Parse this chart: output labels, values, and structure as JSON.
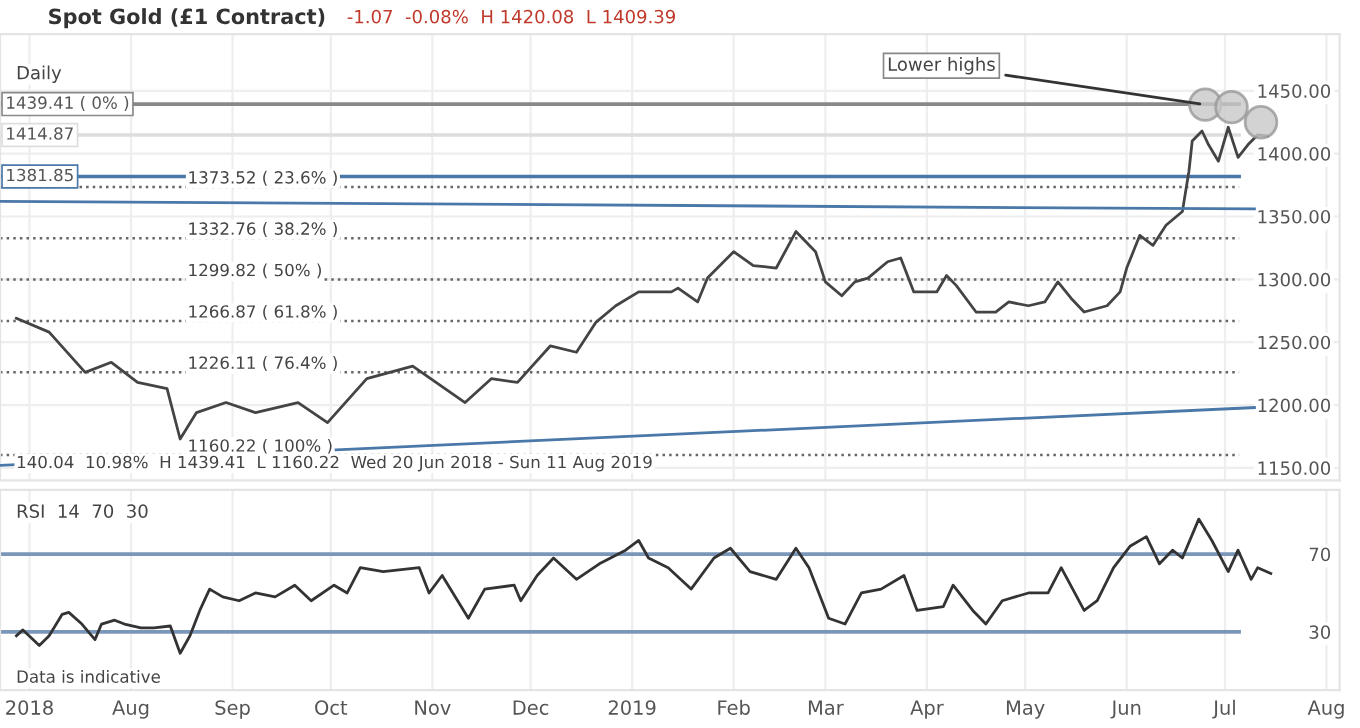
{
  "chart_data": [
    {
      "type": "line",
      "title": "Spot Gold (£1 Contract)",
      "subtitle": "-1.07  -0.08%  H 1420.08  L 1409.39",
      "annotations": [
        "Daily",
        "140.04  10.98%  H 1439.41  L 1160.22  Wed 20 Jun 2018 - Sun 11 Aug 2019",
        {
          "text": "Lower highs",
          "x": "2019-06-25",
          "y": 1439
        }
      ],
      "xlim": [
        "2018-06-22",
        "2019-08-05"
      ],
      "ylim": [
        1140,
        1495
      ],
      "yticks": [
        {
          "value": 1150,
          "label": "1150.00"
        },
        {
          "value": 1200,
          "label": "1200.00"
        },
        {
          "value": 1250,
          "label": "1250.00"
        },
        {
          "value": 1300,
          "label": "1300.00"
        },
        {
          "value": 1350,
          "label": "1350.00"
        },
        {
          "value": 1400,
          "label": "1400.00"
        },
        {
          "value": 1450,
          "label": "1450.00"
        }
      ],
      "tick_labels": "y",
      "grid": true,
      "series": [
        {
          "color": "#444444",
          "x": [
            "2018-06-27",
            "2018-07-07",
            "2018-07-18",
            "2018-07-26",
            "2018-08-03",
            "2018-08-12",
            "2018-08-16",
            "2018-08-21",
            "2018-08-30",
            "2018-09-08",
            "2018-09-21",
            "2018-09-30",
            "2018-10-12",
            "2018-10-26",
            "2018-11-11",
            "2018-11-19",
            "2018-11-27",
            "2018-12-07",
            "2018-12-15",
            "2018-12-21",
            "2018-12-27",
            "2019-01-03",
            "2019-01-13",
            "2019-01-15",
            "2019-01-21",
            "2019-01-24",
            "2019-02-01",
            "2019-02-07",
            "2019-02-14",
            "2019-02-20",
            "2019-02-26",
            "2019-03-01",
            "2019-03-06",
            "2019-03-10",
            "2019-03-14",
            "2019-03-20",
            "2019-03-24",
            "2019-03-28",
            "2019-04-04",
            "2019-04-07",
            "2019-04-10",
            "2019-04-16",
            "2019-04-22",
            "2019-04-26",
            "2019-05-02",
            "2019-05-07",
            "2019-05-11",
            "2019-05-15",
            "2019-05-19",
            "2019-05-26",
            "2019-05-30",
            "2019-06-01",
            "2019-06-05",
            "2019-06-09",
            "2019-06-13",
            "2019-06-18",
            "2019-06-20",
            "2019-06-21",
            "2019-06-24",
            "2019-06-26",
            "2019-06-29",
            "2019-07-02",
            "2019-07-05",
            "2019-07-08",
            "2019-07-11",
            "2019-07-14"
          ],
          "values": [
            1269,
            1258,
            1226,
            1234,
            1218,
            1213,
            1173,
            1194,
            1202,
            1194,
            1202,
            1186,
            1221,
            1231,
            1202,
            1221,
            1218,
            1247,
            1242,
            1266,
            1279,
            1290,
            1290,
            1293,
            1282,
            1301,
            1322,
            1311,
            1309,
            1338,
            1322,
            1298,
            1287,
            1298,
            1301,
            1314,
            1317,
            1290,
            1290,
            1303,
            1295,
            1274,
            1274,
            1282,
            1279,
            1282,
            1298,
            1285,
            1274,
            1279,
            1290,
            1309,
            1335,
            1327,
            1343,
            1354,
            1386,
            1410,
            1418,
            1407,
            1394,
            1421,
            1397,
            1407,
            1415,
            1414
          ]
        },
        {
          "color": "#4a78a8",
          "x": [
            "2018-06-22",
            "2019-07-10"
          ],
          "values": [
            1362,
            1356
          ]
        },
        {
          "color": "#4a78a8",
          "x": [
            "2018-06-22",
            "2019-07-10"
          ],
          "values": [
            1152,
            1198
          ]
        },
        {
          "type": "scatter",
          "marker": "circle",
          "color": "#c8c8c8",
          "x": [
            "2019-06-25",
            "2019-07-03",
            "2019-07-12"
          ],
          "values": [
            1439,
            1437,
            1425
          ]
        }
      ],
      "ref_lines": [
        {
          "axis": "y",
          "value": 1439.41,
          "label": "1439.41 ( 0% )",
          "color": "#888888",
          "line_style": "solid"
        },
        {
          "axis": "y",
          "value": 1414.87,
          "label": "1414.87",
          "color": "#dddddd",
          "line_style": "solid"
        },
        {
          "axis": "y",
          "value": 1381.85,
          "label": "1381.85",
          "color": "#4a78a8",
          "line_style": "solid"
        },
        {
          "axis": "y",
          "value": 1373.52,
          "label": "1373.52 ( 23.6% )",
          "color": "#666666",
          "line_style": "dotted"
        },
        {
          "axis": "y",
          "value": 1332.76,
          "label": "1332.76 ( 38.2% )",
          "color": "#666666",
          "line_style": "dotted"
        },
        {
          "axis": "y",
          "value": 1299.82,
          "label": "1299.82 ( 50% )",
          "color": "#666666",
          "line_style": "dotted"
        },
        {
          "axis": "y",
          "value": 1266.87,
          "label": "1266.87 ( 61.8% )",
          "color": "#666666",
          "line_style": "dotted"
        },
        {
          "axis": "y",
          "value": 1226.11,
          "label": "1226.11 ( 76.4% )",
          "color": "#666666",
          "line_style": "dotted"
        },
        {
          "axis": "y",
          "value": 1160.22,
          "label": "1160.22 ( 100% )",
          "color": "#666666",
          "line_style": "dotted"
        }
      ]
    },
    {
      "type": "line",
      "annotations": [
        "RSI  14  70  30",
        "Data is indicative"
      ],
      "xlim": [
        "2018-06-22",
        "2019-08-05"
      ],
      "xticks": [
        {
          "value": "2018-07-01",
          "label": "2018"
        },
        {
          "value": "2018-08-01",
          "label": "Aug"
        },
        {
          "value": "2018-09-01",
          "label": "Sep"
        },
        {
          "value": "2018-10-01",
          "label": "Oct"
        },
        {
          "value": "2018-11-01",
          "label": "Nov"
        },
        {
          "value": "2018-12-01",
          "label": "Dec"
        },
        {
          "value": "2019-01-01",
          "label": "2019"
        },
        {
          "value": "2019-02-01",
          "label": "Feb"
        },
        {
          "value": "2019-03-01",
          "label": "Mar"
        },
        {
          "value": "2019-04-01",
          "label": "Apr"
        },
        {
          "value": "2019-05-01",
          "label": "May"
        },
        {
          "value": "2019-06-01",
          "label": "Jun"
        },
        {
          "value": "2019-07-01",
          "label": "Jul"
        },
        {
          "value": "2019-08-01",
          "label": "Aug"
        }
      ],
      "ylim": [
        0,
        103
      ],
      "yticks": [
        30,
        70
      ],
      "grid": "x",
      "series": [
        {
          "color": "#333333",
          "x": [
            "2018-06-27",
            "2018-06-29",
            "2018-07-04",
            "2018-07-07",
            "2018-07-11",
            "2018-07-13",
            "2018-07-17",
            "2018-07-21",
            "2018-07-23",
            "2018-07-27",
            "2018-07-30",
            "2018-08-04",
            "2018-08-08",
            "2018-08-13",
            "2018-08-16",
            "2018-08-19",
            "2018-08-22",
            "2018-08-25",
            "2018-08-29",
            "2018-09-03",
            "2018-09-08",
            "2018-09-14",
            "2018-09-20",
            "2018-09-25",
            "2018-10-02",
            "2018-10-06",
            "2018-10-10",
            "2018-10-17",
            "2018-10-28",
            "2018-10-31",
            "2018-11-04",
            "2018-11-12",
            "2018-11-17",
            "2018-11-26",
            "2018-11-28",
            "2018-12-03",
            "2018-12-08",
            "2018-12-15",
            "2018-12-22",
            "2018-12-30",
            "2019-01-03",
            "2019-01-06",
            "2019-01-12",
            "2019-01-19",
            "2019-01-26",
            "2019-01-31",
            "2019-02-06",
            "2019-02-14",
            "2019-02-20",
            "2019-02-24",
            "2019-03-02",
            "2019-03-07",
            "2019-03-12",
            "2019-03-18",
            "2019-03-25",
            "2019-03-29",
            "2019-04-06",
            "2019-04-09",
            "2019-04-15",
            "2019-04-19",
            "2019-04-24",
            "2019-05-02",
            "2019-05-08",
            "2019-05-12",
            "2019-05-19",
            "2019-05-23",
            "2019-05-28",
            "2019-06-02",
            "2019-06-07",
            "2019-06-11",
            "2019-06-15",
            "2019-06-18",
            "2019-06-23",
            "2019-06-27",
            "2019-07-02",
            "2019-07-05",
            "2019-07-09",
            "2019-07-11",
            "2019-07-15"
          ],
          "values": [
            28,
            31,
            23,
            28,
            39,
            40,
            34,
            26,
            34,
            36,
            34,
            32,
            32,
            33,
            19,
            28,
            41,
            52,
            48,
            46,
            50,
            48,
            54,
            46,
            54,
            50,
            63,
            61,
            63,
            50,
            59,
            37,
            52,
            54,
            46,
            59,
            68,
            57,
            65,
            72,
            77,
            68,
            63,
            52,
            68,
            73,
            61,
            57,
            73,
            63,
            37,
            34,
            50,
            52,
            59,
            41,
            43,
            54,
            41,
            34,
            46,
            50,
            50,
            63,
            41,
            46,
            63,
            74,
            79,
            65,
            72,
            68,
            88,
            77,
            61,
            72,
            57,
            63,
            60
          ]
        }
      ],
      "ref_lines": [
        {
          "axis": "y",
          "value": 70,
          "color": "#7a96b8",
          "line_style": "solid"
        },
        {
          "axis": "y",
          "value": 30,
          "color": "#7a96b8",
          "line_style": "solid"
        }
      ]
    }
  ]
}
